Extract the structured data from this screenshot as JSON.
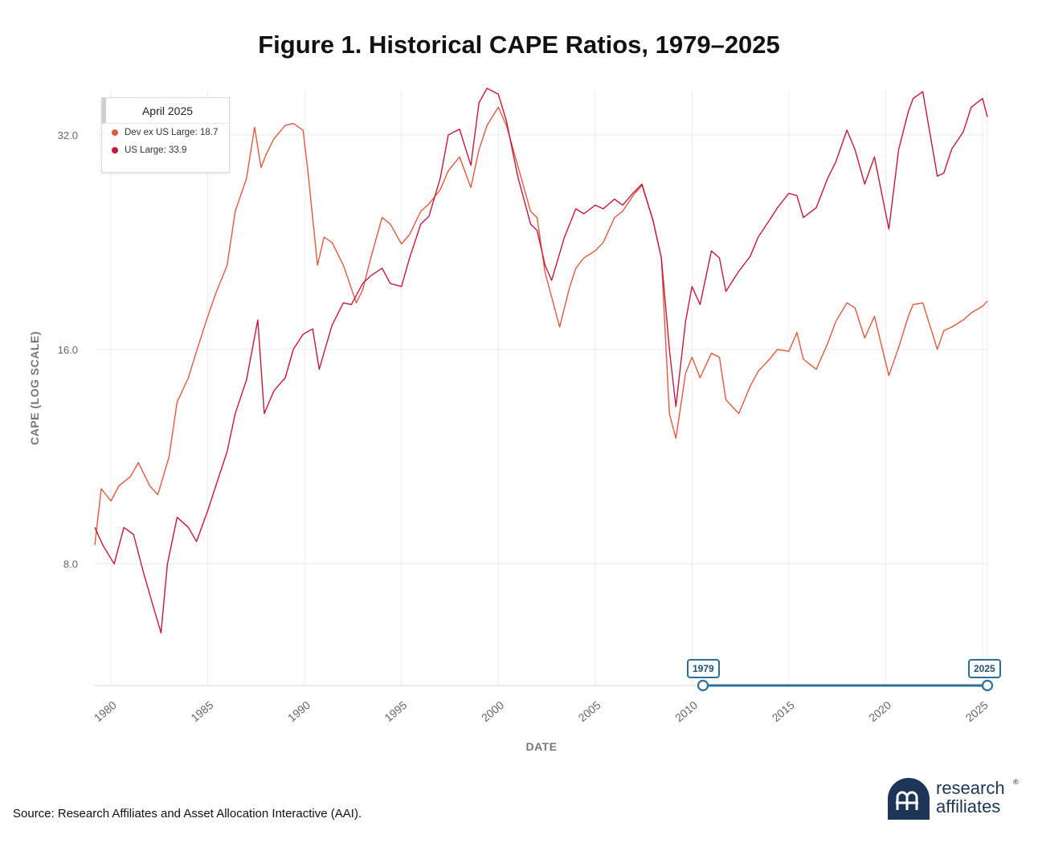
{
  "title": "Figure 1. Historical CAPE Ratios, 1979–2025",
  "source": "Source: Research Affiliates and Asset Allocation Interactive (AAI).",
  "logo": {
    "line1": "research",
    "line2": "affiliates",
    "registered": "®"
  },
  "colors": {
    "dev_ex_us": "#e05a3e",
    "us_large": "#c8173d",
    "range_slider": "#2b6f9a",
    "logo": "#1d3557"
  },
  "tooltip": {
    "date": "April 2025",
    "items": [
      {
        "label": "Dev ex US Large: 18.7",
        "color": "#e05a3e"
      },
      {
        "label": "US Large: 33.9",
        "color": "#c8173d"
      }
    ]
  },
  "range_slider": {
    "start_label": "1979",
    "end_label": "2025"
  },
  "chart_data": {
    "type": "line",
    "xlabel": "DATE",
    "ylabel": "CAPE (LOG SCALE)",
    "y_scale": "log2",
    "ylim": [
      5.4,
      37
    ],
    "xlim": [
      "1979-03",
      "2025-04"
    ],
    "y_ticks": [
      {
        "value": 8,
        "label": "8.0"
      },
      {
        "value": 16,
        "label": "16.0"
      },
      {
        "value": 32,
        "label": "32.0"
      }
    ],
    "x_ticks": [
      {
        "value": 1980,
        "label": "1980"
      },
      {
        "value": 1985,
        "label": "1985"
      },
      {
        "value": 1990,
        "label": "1990"
      },
      {
        "value": 1995,
        "label": "1995"
      },
      {
        "value": 2000,
        "label": "2000"
      },
      {
        "value": 2005,
        "label": "2005"
      },
      {
        "value": 2010,
        "label": "2010"
      },
      {
        "value": 2015,
        "label": "2015"
      },
      {
        "value": 2020,
        "label": "2020"
      },
      {
        "value": 2025,
        "label": "2025"
      }
    ],
    "grid": true,
    "legend": "tooltip top-left",
    "series": [
      {
        "name": "Dev ex US Large",
        "color": "#e05a3e",
        "points": [
          [
            "1979-03",
            8.5
          ],
          [
            "1979-07",
            10.2
          ],
          [
            "1980-01",
            9.8
          ],
          [
            "1980-06",
            10.3
          ],
          [
            "1981-01",
            10.6
          ],
          [
            "1981-06",
            11.1
          ],
          [
            "1982-01",
            10.3
          ],
          [
            "1982-06",
            10.0
          ],
          [
            "1983-01",
            11.3
          ],
          [
            "1983-06",
            13.5
          ],
          [
            "1984-01",
            14.6
          ],
          [
            "1984-06",
            15.9
          ],
          [
            "1985-01",
            17.8
          ],
          [
            "1985-06",
            19.2
          ],
          [
            "1986-01",
            21.0
          ],
          [
            "1986-06",
            25.0
          ],
          [
            "1987-01",
            27.8
          ],
          [
            "1987-06",
            32.8
          ],
          [
            "1987-10",
            28.8
          ],
          [
            "1988-01",
            30.0
          ],
          [
            "1988-06",
            31.6
          ],
          [
            "1989-01",
            33.0
          ],
          [
            "1989-06",
            33.2
          ],
          [
            "1989-12",
            32.5
          ],
          [
            "1990-03",
            28.5
          ],
          [
            "1990-09",
            21.0
          ],
          [
            "1991-01",
            23.0
          ],
          [
            "1991-06",
            22.6
          ],
          [
            "1992-01",
            21.0
          ],
          [
            "1992-09",
            18.6
          ],
          [
            "1993-01",
            19.4
          ],
          [
            "1993-06",
            21.5
          ],
          [
            "1994-01",
            24.5
          ],
          [
            "1994-06",
            24.0
          ],
          [
            "1995-01",
            22.5
          ],
          [
            "1995-06",
            23.2
          ],
          [
            "1996-01",
            25.0
          ],
          [
            "1996-06",
            25.6
          ],
          [
            "1997-01",
            26.8
          ],
          [
            "1997-06",
            28.5
          ],
          [
            "1998-01",
            29.8
          ],
          [
            "1998-08",
            27.0
          ],
          [
            "1999-01",
            30.5
          ],
          [
            "1999-06",
            33.0
          ],
          [
            "2000-01",
            35.0
          ],
          [
            "2000-06",
            33.0
          ],
          [
            "2001-01",
            29.0
          ],
          [
            "2001-09",
            25.0
          ],
          [
            "2002-01",
            24.5
          ],
          [
            "2002-06",
            20.5
          ],
          [
            "2003-03",
            17.2
          ],
          [
            "2003-09",
            19.5
          ],
          [
            "2004-01",
            20.8
          ],
          [
            "2004-06",
            21.5
          ],
          [
            "2005-01",
            22.0
          ],
          [
            "2005-06",
            22.6
          ],
          [
            "2006-01",
            24.5
          ],
          [
            "2006-06",
            25.0
          ],
          [
            "2007-01",
            26.4
          ],
          [
            "2007-06",
            27.2
          ],
          [
            "2008-01",
            24.2
          ],
          [
            "2008-06",
            21.5
          ],
          [
            "2008-11",
            13.0
          ],
          [
            "2009-03",
            12.0
          ],
          [
            "2009-09",
            14.8
          ],
          [
            "2010-01",
            15.6
          ],
          [
            "2010-06",
            14.6
          ],
          [
            "2011-01",
            15.8
          ],
          [
            "2011-06",
            15.6
          ],
          [
            "2011-10",
            13.6
          ],
          [
            "2012-06",
            13.0
          ],
          [
            "2013-01",
            14.2
          ],
          [
            "2013-06",
            14.9
          ],
          [
            "2014-01",
            15.5
          ],
          [
            "2014-06",
            16.0
          ],
          [
            "2015-01",
            15.9
          ],
          [
            "2015-06",
            16.9
          ],
          [
            "2015-10",
            15.5
          ],
          [
            "2016-06",
            15.0
          ],
          [
            "2017-01",
            16.3
          ],
          [
            "2017-06",
            17.5
          ],
          [
            "2018-01",
            18.6
          ],
          [
            "2018-06",
            18.3
          ],
          [
            "2018-12",
            16.6
          ],
          [
            "2019-06",
            17.8
          ],
          [
            "2020-03",
            14.7
          ],
          [
            "2020-09",
            16.1
          ],
          [
            "2021-03",
            17.8
          ],
          [
            "2021-06",
            18.5
          ],
          [
            "2021-12",
            18.6
          ],
          [
            "2022-09",
            16.0
          ],
          [
            "2023-01",
            17.0
          ],
          [
            "2023-06",
            17.2
          ],
          [
            "2024-01",
            17.6
          ],
          [
            "2024-06",
            18.0
          ],
          [
            "2025-01",
            18.4
          ],
          [
            "2025-04",
            18.7
          ]
        ]
      },
      {
        "name": "US Large",
        "color": "#c8173d",
        "points": [
          [
            "1979-03",
            9.0
          ],
          [
            "1979-08",
            8.5
          ],
          [
            "1980-03",
            8.0
          ],
          [
            "1980-09",
            9.0
          ],
          [
            "1981-03",
            8.8
          ],
          [
            "1981-09",
            7.8
          ],
          [
            "1982-03",
            7.0
          ],
          [
            "1982-08",
            6.4
          ],
          [
            "1982-12",
            8.0
          ],
          [
            "1983-06",
            9.3
          ],
          [
            "1984-01",
            9.0
          ],
          [
            "1984-06",
            8.6
          ],
          [
            "1985-01",
            9.5
          ],
          [
            "1985-06",
            10.3
          ],
          [
            "1986-01",
            11.5
          ],
          [
            "1986-06",
            13.0
          ],
          [
            "1987-01",
            14.5
          ],
          [
            "1987-08",
            17.6
          ],
          [
            "1987-12",
            13.0
          ],
          [
            "1988-06",
            14.0
          ],
          [
            "1989-01",
            14.6
          ],
          [
            "1989-06",
            16.0
          ],
          [
            "1989-12",
            16.8
          ],
          [
            "1990-06",
            17.1
          ],
          [
            "1990-10",
            15.0
          ],
          [
            "1991-06",
            17.3
          ],
          [
            "1992-01",
            18.6
          ],
          [
            "1992-06",
            18.5
          ],
          [
            "1993-01",
            19.8
          ],
          [
            "1993-06",
            20.3
          ],
          [
            "1994-01",
            20.8
          ],
          [
            "1994-06",
            19.8
          ],
          [
            "1995-01",
            19.6
          ],
          [
            "1995-06",
            21.5
          ],
          [
            "1996-01",
            24.0
          ],
          [
            "1996-06",
            24.6
          ],
          [
            "1997-01",
            27.8
          ],
          [
            "1997-06",
            32.0
          ],
          [
            "1998-01",
            32.6
          ],
          [
            "1998-08",
            29.0
          ],
          [
            "1999-01",
            35.5
          ],
          [
            "1999-06",
            37.2
          ],
          [
            "2000-01",
            36.5
          ],
          [
            "2000-06",
            33.5
          ],
          [
            "2001-01",
            28.0
          ],
          [
            "2001-09",
            24.0
          ],
          [
            "2002-01",
            23.5
          ],
          [
            "2002-06",
            21.0
          ],
          [
            "2002-10",
            20.0
          ],
          [
            "2003-06",
            23.0
          ],
          [
            "2004-01",
            25.2
          ],
          [
            "2004-06",
            24.8
          ],
          [
            "2005-01",
            25.5
          ],
          [
            "2005-06",
            25.2
          ],
          [
            "2006-01",
            26.0
          ],
          [
            "2006-06",
            25.5
          ],
          [
            "2007-01",
            26.6
          ],
          [
            "2007-06",
            27.3
          ],
          [
            "2008-01",
            24.2
          ],
          [
            "2008-06",
            21.5
          ],
          [
            "2008-11",
            16.0
          ],
          [
            "2009-03",
            13.3
          ],
          [
            "2009-09",
            17.5
          ],
          [
            "2010-01",
            19.6
          ],
          [
            "2010-06",
            18.5
          ],
          [
            "2011-01",
            22.0
          ],
          [
            "2011-06",
            21.5
          ],
          [
            "2011-10",
            19.3
          ],
          [
            "2012-06",
            20.6
          ],
          [
            "2013-01",
            21.6
          ],
          [
            "2013-06",
            23.0
          ],
          [
            "2014-01",
            24.3
          ],
          [
            "2014-06",
            25.3
          ],
          [
            "2015-01",
            26.5
          ],
          [
            "2015-06",
            26.3
          ],
          [
            "2015-10",
            24.5
          ],
          [
            "2016-06",
            25.3
          ],
          [
            "2017-01",
            27.8
          ],
          [
            "2017-06",
            29.3
          ],
          [
            "2018-01",
            32.5
          ],
          [
            "2018-06",
            30.5
          ],
          [
            "2018-12",
            27.3
          ],
          [
            "2019-06",
            29.8
          ],
          [
            "2020-03",
            23.6
          ],
          [
            "2020-09",
            30.5
          ],
          [
            "2021-03",
            34.5
          ],
          [
            "2021-06",
            36.0
          ],
          [
            "2021-12",
            36.8
          ],
          [
            "2022-09",
            28.0
          ],
          [
            "2023-01",
            28.3
          ],
          [
            "2023-06",
            30.6
          ],
          [
            "2024-01",
            32.3
          ],
          [
            "2024-06",
            35.0
          ],
          [
            "2025-01",
            36.0
          ],
          [
            "2025-04",
            33.9
          ]
        ]
      }
    ]
  }
}
